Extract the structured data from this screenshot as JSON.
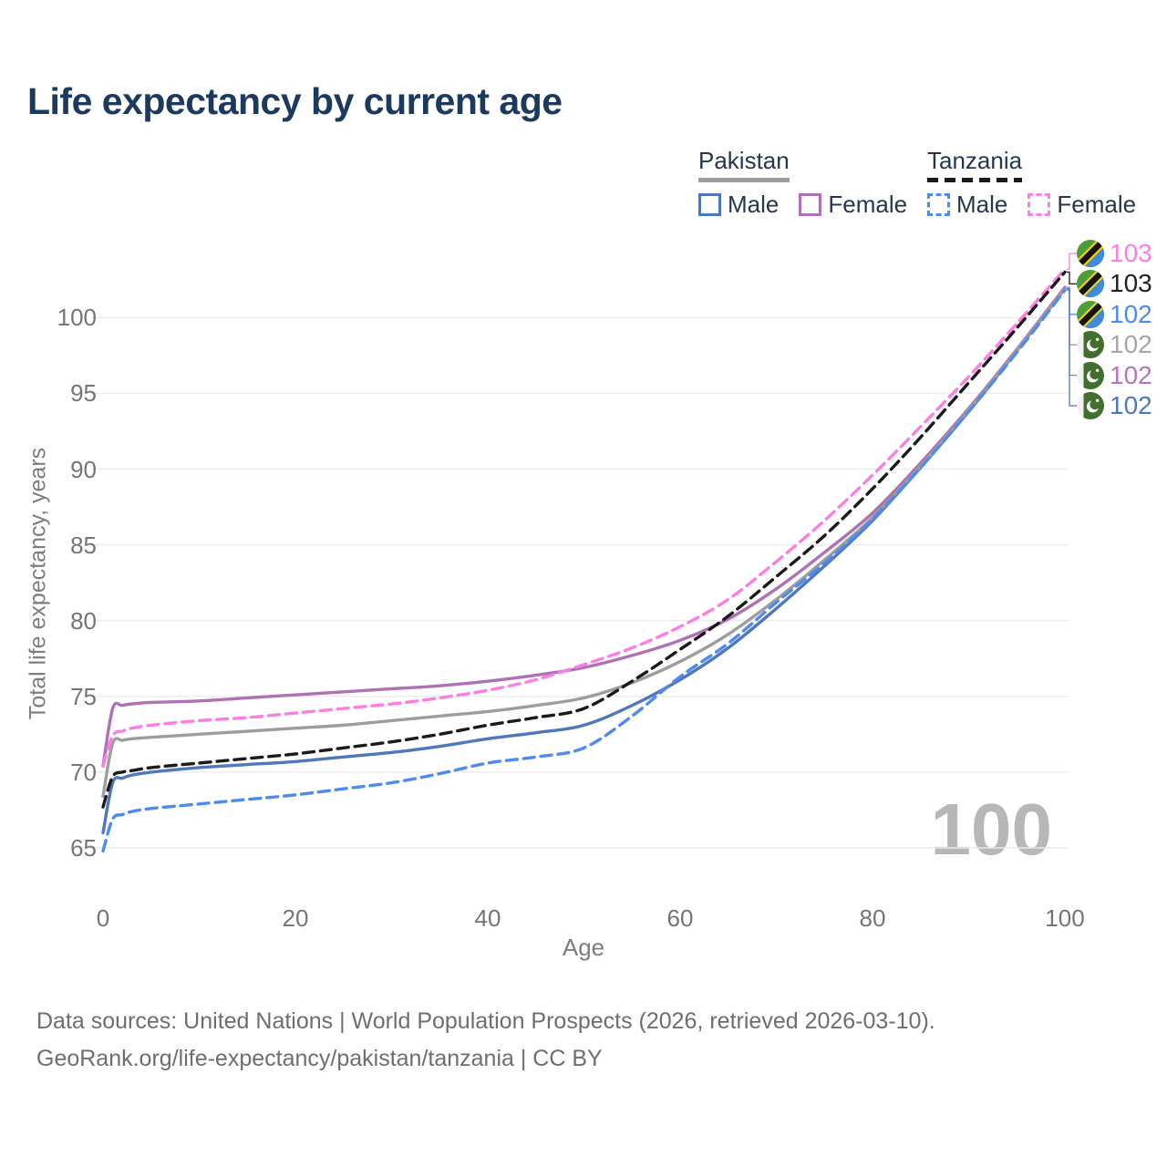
{
  "title": "Life expectancy by current age",
  "legend": {
    "groups": [
      {
        "name": "Pakistan",
        "line_style": "solid",
        "underline_color": "#9e9e9e",
        "items": [
          {
            "label": "Male",
            "color": "#4e78ba"
          },
          {
            "label": "Female",
            "color": "#ae71b3"
          }
        ]
      },
      {
        "name": "Tanzania",
        "line_style": "dashed",
        "underline_color": "#1a1a1a",
        "items": [
          {
            "label": "Male",
            "color": "#4d8bf0"
          },
          {
            "label": "Female",
            "color": "#fc7ee2"
          }
        ]
      }
    ]
  },
  "axes": {
    "x_title": "Age",
    "y_title": "Total life expectancy, years"
  },
  "watermark_age": "100",
  "footer": {
    "line1": "Data sources: United Nations | World Population Prospects (2026, retrieved 2026-03-10).",
    "line2": "GeoRank.org/life-expectancy/pakistan/tanzania | CC BY"
  },
  "end_labels": [
    {
      "label": "103",
      "flag": "tanzania",
      "color": "#fc7ee2",
      "series_index": 4
    },
    {
      "label": "103",
      "flag": "tanzania",
      "color": "#222222",
      "series_index": 5
    },
    {
      "label": "102",
      "flag": "tanzania",
      "color": "#4d8bf0",
      "series_index": 3
    },
    {
      "label": "102",
      "flag": "pakistan",
      "color": "#a6a6a6",
      "series_index": 2
    },
    {
      "label": "102",
      "flag": "pakistan",
      "color": "#b277b7",
      "series_index": 1
    },
    {
      "label": "102",
      "flag": "pakistan",
      "color": "#4e78ba",
      "series_index": 0
    }
  ],
  "chart_data": {
    "type": "line",
    "title": "Life expectancy by current age",
    "xlabel": "Age",
    "ylabel": "Total life expectancy, years",
    "x_ticks": [
      0,
      20,
      40,
      60,
      80,
      100
    ],
    "y_ticks": [
      65,
      70,
      75,
      80,
      85,
      90,
      95,
      100
    ],
    "xlim": [
      0,
      100
    ],
    "ylim": [
      65,
      100
    ],
    "grid": "horizontal",
    "legend_position": "top-right",
    "x": [
      0,
      1,
      2,
      3,
      5,
      10,
      15,
      20,
      25,
      30,
      35,
      40,
      45,
      50,
      55,
      60,
      65,
      70,
      75,
      80,
      85,
      90,
      95,
      100
    ],
    "series": [
      {
        "name": "Pakistan Male",
        "country": "Pakistan",
        "sex": "Male",
        "color": "#4e78ba",
        "dashed": false,
        "values": [
          66.0,
          69.3,
          69.6,
          69.8,
          70.0,
          70.3,
          70.5,
          70.7,
          71.0,
          71.3,
          71.7,
          72.2,
          72.6,
          73.1,
          74.4,
          76.1,
          78.2,
          80.8,
          83.6,
          86.6,
          90.1,
          93.8,
          97.8,
          101.9
        ]
      },
      {
        "name": "Pakistan Female",
        "country": "Pakistan",
        "sex": "Female",
        "color": "#ae71b3",
        "dashed": false,
        "values": [
          70.4,
          74.2,
          74.4,
          74.5,
          74.6,
          74.7,
          74.9,
          75.1,
          75.3,
          75.5,
          75.7,
          76.0,
          76.4,
          76.9,
          77.7,
          78.7,
          80.1,
          82.1,
          84.5,
          87.1,
          90.4,
          94.0,
          97.9,
          102.0
        ]
      },
      {
        "name": "Pakistan Both sexes",
        "country": "Pakistan",
        "sex": "Both",
        "color": "#9d9d9d",
        "dashed": false,
        "values": [
          68.4,
          71.9,
          72.1,
          72.2,
          72.3,
          72.5,
          72.7,
          72.9,
          73.1,
          73.4,
          73.7,
          74.0,
          74.4,
          74.9,
          75.9,
          77.3,
          79.1,
          81.4,
          84.0,
          86.8,
          90.2,
          93.9,
          97.8,
          101.9
        ]
      },
      {
        "name": "Tanzania Male",
        "country": "Tanzania",
        "sex": "Male",
        "color": "#4d8bf0",
        "dashed": true,
        "values": [
          64.8,
          66.9,
          67.2,
          67.4,
          67.6,
          67.9,
          68.2,
          68.5,
          68.9,
          69.3,
          69.9,
          70.6,
          71.0,
          71.6,
          73.7,
          76.3,
          78.5,
          81.2,
          83.8,
          86.7,
          90.1,
          93.8,
          97.7,
          101.8
        ]
      },
      {
        "name": "Tanzania Female",
        "country": "Tanzania",
        "sex": "Female",
        "color": "#fc7ee2",
        "dashed": true,
        "values": [
          70.4,
          72.4,
          72.7,
          72.9,
          73.1,
          73.4,
          73.6,
          73.9,
          74.2,
          74.5,
          74.9,
          75.4,
          76.1,
          77.1,
          78.2,
          79.6,
          81.4,
          83.9,
          86.6,
          89.6,
          92.8,
          96.1,
          99.6,
          103.2
        ]
      },
      {
        "name": "Tanzania Both sexes",
        "country": "Tanzania",
        "sex": "Both",
        "color": "#1a1a1a",
        "dashed": true,
        "values": [
          67.7,
          69.7,
          70.0,
          70.1,
          70.3,
          70.6,
          70.9,
          71.2,
          71.6,
          72.0,
          72.5,
          73.1,
          73.6,
          74.2,
          76.0,
          78.1,
          80.3,
          82.9,
          85.6,
          88.7,
          92.1,
          95.7,
          99.3,
          103.0
        ]
      }
    ]
  }
}
